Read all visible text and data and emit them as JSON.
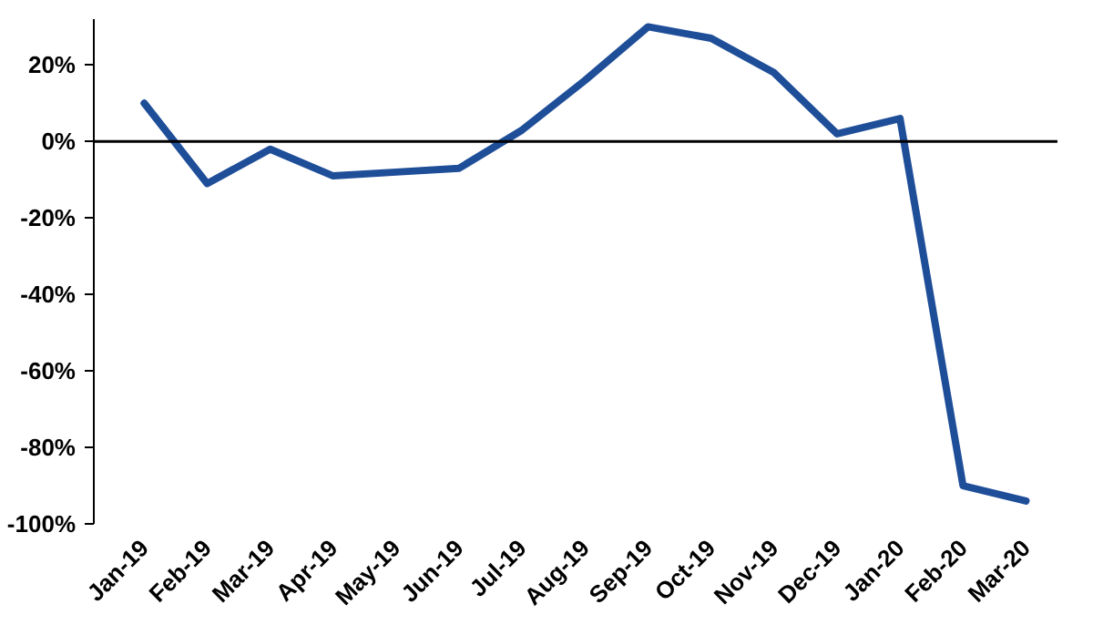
{
  "chart_data": {
    "type": "line",
    "categories": [
      "Jan-19",
      "Feb-19",
      "Mar-19",
      "Apr-19",
      "May-19",
      "Jun-19",
      "Jul-19",
      "Aug-19",
      "Sep-19",
      "Oct-19",
      "Nov-19",
      "Dec-19",
      "Jan-20",
      "Feb-20",
      "Mar-20"
    ],
    "series": [
      {
        "color": "#1f4e99",
        "values": [
          10,
          -11,
          -2,
          -9,
          -8,
          -7,
          3,
          16,
          30,
          27,
          18,
          2,
          6,
          -90,
          -94
        ]
      }
    ],
    "ylim": [
      -100,
      32
    ],
    "yticks": [
      {
        "value": -100,
        "label": "-100%"
      },
      {
        "value": -80,
        "label": "-80%"
      },
      {
        "value": -60,
        "label": "-60%"
      },
      {
        "value": -40,
        "label": "-40%"
      },
      {
        "value": -20,
        "label": "-20%"
      },
      {
        "value": 0,
        "label": "0%"
      },
      {
        "value": 20,
        "label": "20%"
      }
    ],
    "ref_lines": [
      {
        "axis": "y",
        "value": 0,
        "color": "#000000"
      }
    ],
    "grid": false
  }
}
